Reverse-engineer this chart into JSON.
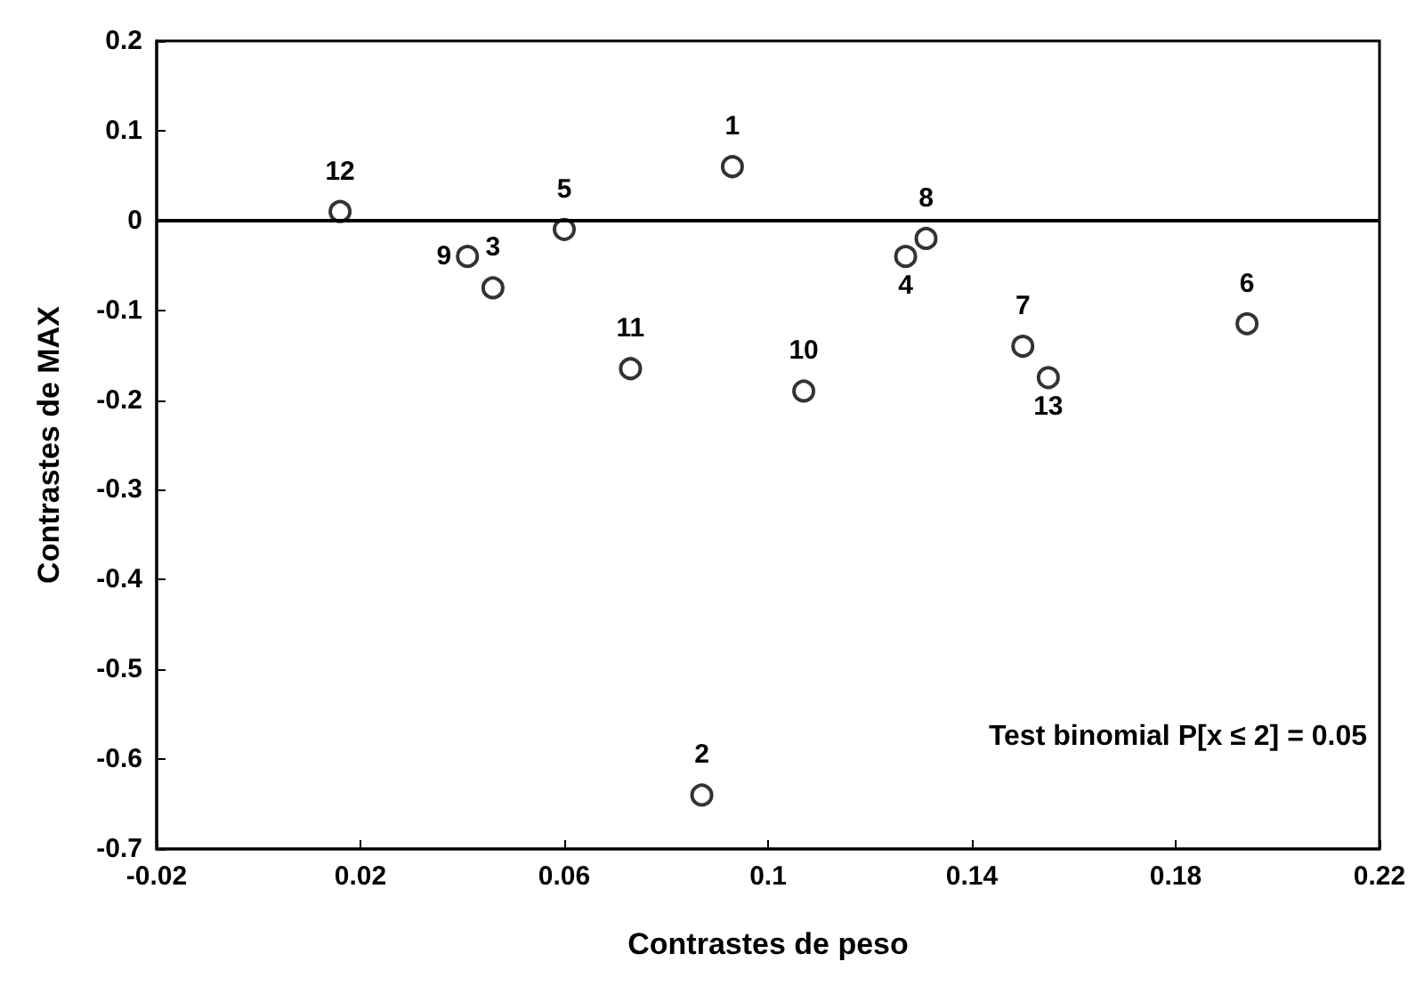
{
  "chart_data": {
    "type": "scatter",
    "xlabel": "Contrastes de peso",
    "ylabel": "Contrastes de MAX",
    "x": [
      0.093,
      0.087,
      0.046,
      0.127,
      0.06,
      0.194,
      0.15,
      0.131,
      0.041,
      0.107,
      0.073,
      0.016,
      0.155
    ],
    "values": [
      0.06,
      -0.64,
      -0.075,
      -0.04,
      -0.01,
      -0.115,
      -0.14,
      -0.02,
      -0.04,
      -0.19,
      -0.165,
      0.01,
      -0.175
    ],
    "color": "#000000",
    "marker": "circle",
    "grid": false,
    "xlim": [
      -0.02,
      0.22
    ],
    "xticks": [
      -0.02,
      0.02,
      0.06,
      0.1,
      0.14,
      0.18,
      0.22
    ],
    "ylim": [
      -0.7,
      0.2
    ],
    "yticks": [
      0.2,
      0.1,
      0,
      -0.1,
      -0.2,
      -0.3,
      -0.4,
      -0.5,
      -0.6,
      -0.7
    ],
    "ref_lines": [
      {
        "axis": "y",
        "value": 0,
        "color": "#000000"
      }
    ],
    "annotations": [
      {
        "text": "1",
        "x": 0.093,
        "y": 0.06
      },
      {
        "text": "2",
        "x": 0.087,
        "y": -0.64
      },
      {
        "text": "3",
        "x": 0.046,
        "y": -0.075
      },
      {
        "text": "4",
        "x": 0.127,
        "y": -0.04
      },
      {
        "text": "5",
        "x": 0.06,
        "y": -0.01
      },
      {
        "text": "6",
        "x": 0.194,
        "y": -0.115
      },
      {
        "text": "7",
        "x": 0.15,
        "y": -0.14
      },
      {
        "text": "8",
        "x": 0.131,
        "y": -0.02
      },
      {
        "text": "9",
        "x": 0.041,
        "y": -0.04
      },
      {
        "text": "10",
        "x": 0.107,
        "y": -0.19
      },
      {
        "text": "11",
        "x": 0.073,
        "y": -0.165
      },
      {
        "text": "12",
        "x": 0.016,
        "y": 0.01
      },
      {
        "text": "13",
        "x": 0.155,
        "y": -0.175
      },
      "Test binomial P[x ≤ 2] = 0.05"
    ]
  }
}
